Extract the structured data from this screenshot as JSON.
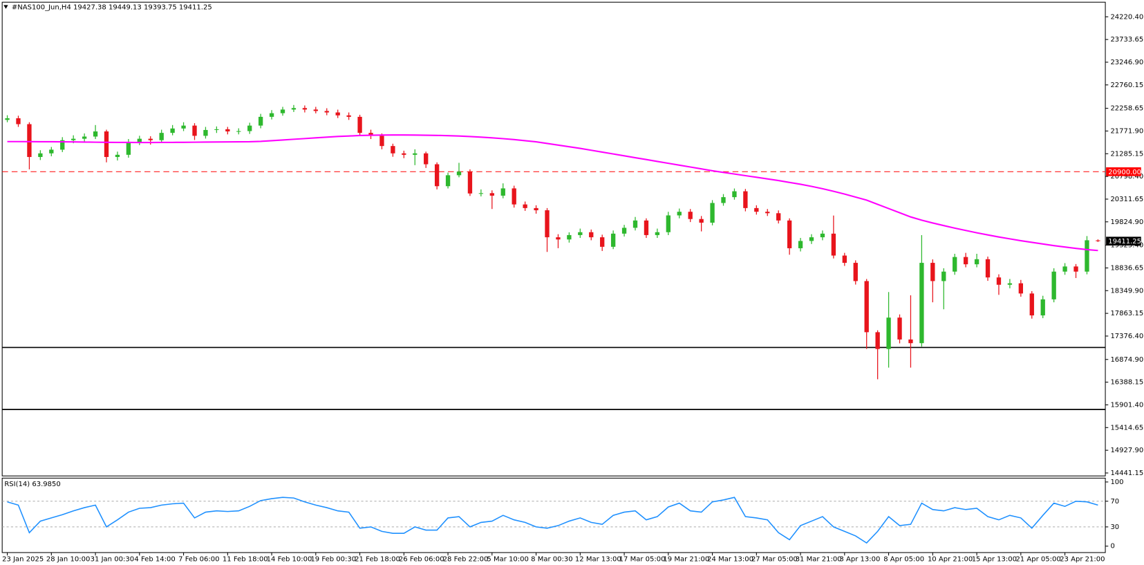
{
  "chart_data": [
    {
      "type": "candlestick",
      "title": "#NAS100_Jun,H4  19427.38 19449.13 19393.75 19411.25",
      "categories": [
        "23 Jan 2025",
        null,
        null,
        null,
        "28 Jan 10:00",
        null,
        null,
        null,
        "31 Jan 00:30",
        null,
        null,
        null,
        "4 Feb 14:00",
        null,
        null,
        null,
        "7 Feb 06:00",
        null,
        null,
        null,
        "11 Feb 18:00",
        null,
        null,
        null,
        "14 Feb 10:00",
        null,
        null,
        null,
        "19 Feb 00:30",
        null,
        null,
        null,
        "21 Feb 18:00",
        null,
        null,
        null,
        "26 Feb 06:00",
        null,
        null,
        null,
        "28 Feb 22:00",
        null,
        null,
        null,
        "5 Mar 10:00",
        null,
        null,
        null,
        "8 Mar 00:30",
        null,
        null,
        null,
        "12 Mar 13:00",
        null,
        null,
        null,
        "17 Mar 05:00",
        null,
        null,
        null,
        "19 Mar 21:00",
        null,
        null,
        null,
        "24 Mar 13:00",
        null,
        null,
        null,
        "27 Mar 05:00",
        null,
        null,
        null,
        "31 Mar 21:00",
        null,
        null,
        null,
        "3 Apr 13:00",
        null,
        null,
        null,
        "8 Apr 05:00",
        null,
        null,
        null,
        "10 Apr 21:00",
        null,
        null,
        null,
        "15 Apr 13:00",
        null,
        null,
        null,
        "21 Apr 05:00",
        null,
        null,
        null,
        "23 Apr 21:00",
        null,
        null,
        null
      ],
      "open": [
        22010,
        22045,
        21919,
        21215,
        21293,
        21372,
        21575,
        21606,
        21653,
        21763,
        21215,
        21262,
        21528,
        21606,
        21575,
        21732,
        21826,
        21888,
        21669,
        21794,
        21810,
        21763,
        21770,
        21888,
        22076,
        22154,
        22232,
        22264,
        22232,
        22201,
        22170,
        22107,
        22076,
        21732,
        21669,
        21450,
        21293,
        21262,
        21293,
        21059,
        20589,
        20824,
        20902,
        20433,
        20440,
        20386,
        20542,
        20198,
        20120,
        20073,
        19494,
        19447,
        19541,
        19603,
        19494,
        19290,
        19572,
        19697,
        19854,
        19541,
        19603,
        19963,
        20041,
        19885,
        19807,
        20229,
        20354,
        20480,
        20120,
        20041,
        20010,
        19854,
        19259,
        19415,
        19494,
        19572,
        19102,
        18946,
        18555,
        17459,
        17099,
        17772,
        17303,
        17224,
        18946,
        18555,
        18758,
        19071,
        18915,
        19024,
        18633,
        18476,
        18508,
        18289,
        17819,
        18163,
        18758,
        18868,
        18758,
        19427.38
      ],
      "high": [
        22110,
        22100,
        21960,
        21360,
        21430,
        21640,
        21680,
        21720,
        21900,
        21800,
        21330,
        21600,
        21670,
        21660,
        21800,
        21900,
        21960,
        21940,
        21860,
        21870,
        21860,
        21830,
        21950,
        22140,
        22220,
        22290,
        22330,
        22320,
        22290,
        22260,
        22230,
        22170,
        22120,
        21800,
        21720,
        21500,
        21350,
        21380,
        21330,
        21100,
        20880,
        21090,
        20950,
        20520,
        20500,
        20650,
        20600,
        20260,
        20180,
        20120,
        19560,
        19600,
        19680,
        19660,
        19550,
        19640,
        19760,
        19930,
        19900,
        19680,
        20040,
        20110,
        20100,
        19950,
        20290,
        20420,
        20540,
        20530,
        20180,
        20100,
        20070,
        19900,
        19480,
        19560,
        19640,
        19960,
        19160,
        19000,
        18600,
        17500,
        18320,
        17840,
        18250,
        19540,
        19020,
        18830,
        19140,
        19160,
        19140,
        19080,
        18700,
        18600,
        18580,
        18340,
        18240,
        18830,
        18940,
        18920,
        19520,
        19449.13
      ],
      "low": [
        21960,
        21860,
        20950,
        21150,
        21230,
        21320,
        21510,
        21540,
        21600,
        21100,
        21140,
        21200,
        21470,
        21480,
        21520,
        21680,
        21770,
        21580,
        21610,
        21730,
        21700,
        21700,
        21710,
        21830,
        22020,
        22100,
        22180,
        22170,
        22150,
        22110,
        22050,
        22010,
        21660,
        21600,
        21380,
        21220,
        21190,
        21040,
        20980,
        20520,
        20540,
        20780,
        20380,
        20370,
        20100,
        20330,
        20130,
        20060,
        20000,
        19180,
        19260,
        19380,
        19480,
        19430,
        19200,
        19240,
        19510,
        19640,
        19480,
        19480,
        19540,
        19900,
        19820,
        19620,
        19750,
        20170,
        20300,
        20050,
        19980,
        19950,
        19790,
        19120,
        19190,
        19350,
        19430,
        19040,
        18880,
        18480,
        17100,
        16450,
        16700,
        17220,
        16700,
        17150,
        18100,
        17950,
        18690,
        18850,
        18850,
        18560,
        18260,
        18400,
        18220,
        17750,
        17760,
        18100,
        18690,
        18620,
        18700,
        19393.75
      ],
      "close": [
        22045,
        21919,
        21215,
        21293,
        21372,
        21575,
        21606,
        21653,
        21763,
        21215,
        21262,
        21528,
        21606,
        21575,
        21732,
        21826,
        21888,
        21669,
        21794,
        21810,
        21763,
        21770,
        21888,
        22076,
        22154,
        22232,
        22264,
        22232,
        22201,
        22170,
        22107,
        22076,
        21732,
        21669,
        21450,
        21293,
        21262,
        21293,
        21059,
        20589,
        20824,
        20902,
        20433,
        20440,
        20386,
        20542,
        20198,
        20120,
        20073,
        19494,
        19447,
        19541,
        19603,
        19494,
        19290,
        19572,
        19697,
        19854,
        19541,
        19603,
        19963,
        20041,
        19885,
        19807,
        20229,
        20354,
        20480,
        20120,
        20041,
        20010,
        19854,
        19259,
        19415,
        19494,
        19572,
        19102,
        18946,
        18555,
        17459,
        17099,
        17772,
        17303,
        17224,
        18946,
        18555,
        18758,
        19071,
        18915,
        19024,
        18633,
        18476,
        18508,
        18289,
        17819,
        18163,
        18758,
        18868,
        18758,
        19430,
        19411.25
      ],
      "up_color": "#2eb82e",
      "down_color": "#e8141c",
      "overlay": {
        "color": "#ff00ff",
        "values": [
          21545,
          21545,
          21544,
          21543,
          21542,
          21540,
          21538,
          21535,
          21532,
          21530,
          21528,
          21527,
          21526,
          21526,
          21527,
          21528,
          21530,
          21532,
          21534,
          21536,
          21538,
          21540,
          21542,
          21550,
          21565,
          21580,
          21595,
          21610,
          21625,
          21640,
          21655,
          21665,
          21675,
          21682,
          21685,
          21686,
          21686,
          21685,
          21682,
          21678,
          21672,
          21664,
          21654,
          21640,
          21625,
          21608,
          21588,
          21565,
          21540,
          21505,
          21470,
          21435,
          21400,
          21360,
          21320,
          21280,
          21240,
          21200,
          21160,
          21120,
          21080,
          21040,
          21000,
          20960,
          20920,
          20885,
          20850,
          20815,
          20780,
          20745,
          20710,
          20670,
          20630,
          20585,
          20535,
          20480,
          20420,
          20355,
          20290,
          20200,
          20110,
          20020,
          19930,
          19860,
          19800,
          19745,
          19690,
          19640,
          19590,
          19545,
          19500,
          19460,
          19420,
          19385,
          19350,
          19315,
          19285,
          19255,
          19230,
          19210
        ]
      },
      "hlines": [
        {
          "value": 20900,
          "label": "20900.00",
          "color": "#ff0000",
          "style": "dashed"
        },
        {
          "value": 17132,
          "color": "#000000",
          "style": "solid"
        },
        {
          "value": 15802,
          "color": "#000000",
          "style": "solid"
        }
      ],
      "price_label": {
        "value": 19411.25,
        "label": "19411.25"
      },
      "ylim": [
        14378,
        24533
      ],
      "yticks": [
        {
          "value": 24220.4,
          "label": "24220.40"
        },
        {
          "value": 23733.65,
          "label": "23733.65"
        },
        {
          "value": 23246.9,
          "label": "23246.90"
        },
        {
          "value": 22760.15,
          "label": "22760.15"
        },
        {
          "value": 22258.65,
          "label": "22258.65"
        },
        {
          "value": 21771.9,
          "label": "21771.90"
        },
        {
          "value": 21285.15,
          "label": "21285.15"
        },
        {
          "value": 20798.4,
          "label": "20798.40"
        },
        {
          "value": 20311.65,
          "label": "20311.65"
        },
        {
          "value": 19824.9,
          "label": "19824.90"
        },
        {
          "value": 19325.4,
          "label": "19325.40"
        },
        {
          "value": 18836.65,
          "label": "18836.65"
        },
        {
          "value": 18349.9,
          "label": "18349.90"
        },
        {
          "value": 17863.15,
          "label": "17863.15"
        },
        {
          "value": 17376.4,
          "label": "17376.40"
        },
        {
          "value": 16874.9,
          "label": "16874.90"
        },
        {
          "value": 16388.15,
          "label": "16388.15"
        },
        {
          "value": 15901.4,
          "label": "15901.40"
        },
        {
          "value": 15414.65,
          "label": "15414.65"
        },
        {
          "value": 14927.9,
          "label": "14927.90"
        },
        {
          "value": 14441.15,
          "label": "14441.15"
        }
      ]
    },
    {
      "type": "line",
      "title": "RSI(14) 63.9850",
      "color": "#1e90ff",
      "values": [
        69,
        64,
        21,
        39,
        44,
        49,
        55,
        60,
        64,
        30,
        41,
        53,
        59,
        60,
        64,
        66,
        67,
        44,
        53,
        55,
        54,
        55,
        62,
        71,
        74,
        76,
        75,
        69,
        64,
        60,
        55,
        53,
        28,
        30,
        23,
        20,
        20,
        30,
        25,
        25,
        44,
        46,
        30,
        37,
        39,
        48,
        41,
        37,
        30,
        28,
        32,
        39,
        44,
        37,
        34,
        48,
        53,
        55,
        41,
        46,
        61,
        67,
        55,
        53,
        69,
        72,
        76,
        46,
        44,
        41,
        21,
        10,
        32,
        39,
        46,
        30,
        23,
        16,
        5,
        23,
        46,
        32,
        34,
        67,
        57,
        55,
        60,
        57,
        59,
        46,
        41,
        48,
        44,
        28,
        48,
        67,
        62,
        70,
        69,
        63.985
      ],
      "ylim": [
        -10,
        106
      ],
      "yticks": [
        0,
        30,
        70,
        100
      ],
      "levels": [
        30,
        70
      ]
    }
  ]
}
